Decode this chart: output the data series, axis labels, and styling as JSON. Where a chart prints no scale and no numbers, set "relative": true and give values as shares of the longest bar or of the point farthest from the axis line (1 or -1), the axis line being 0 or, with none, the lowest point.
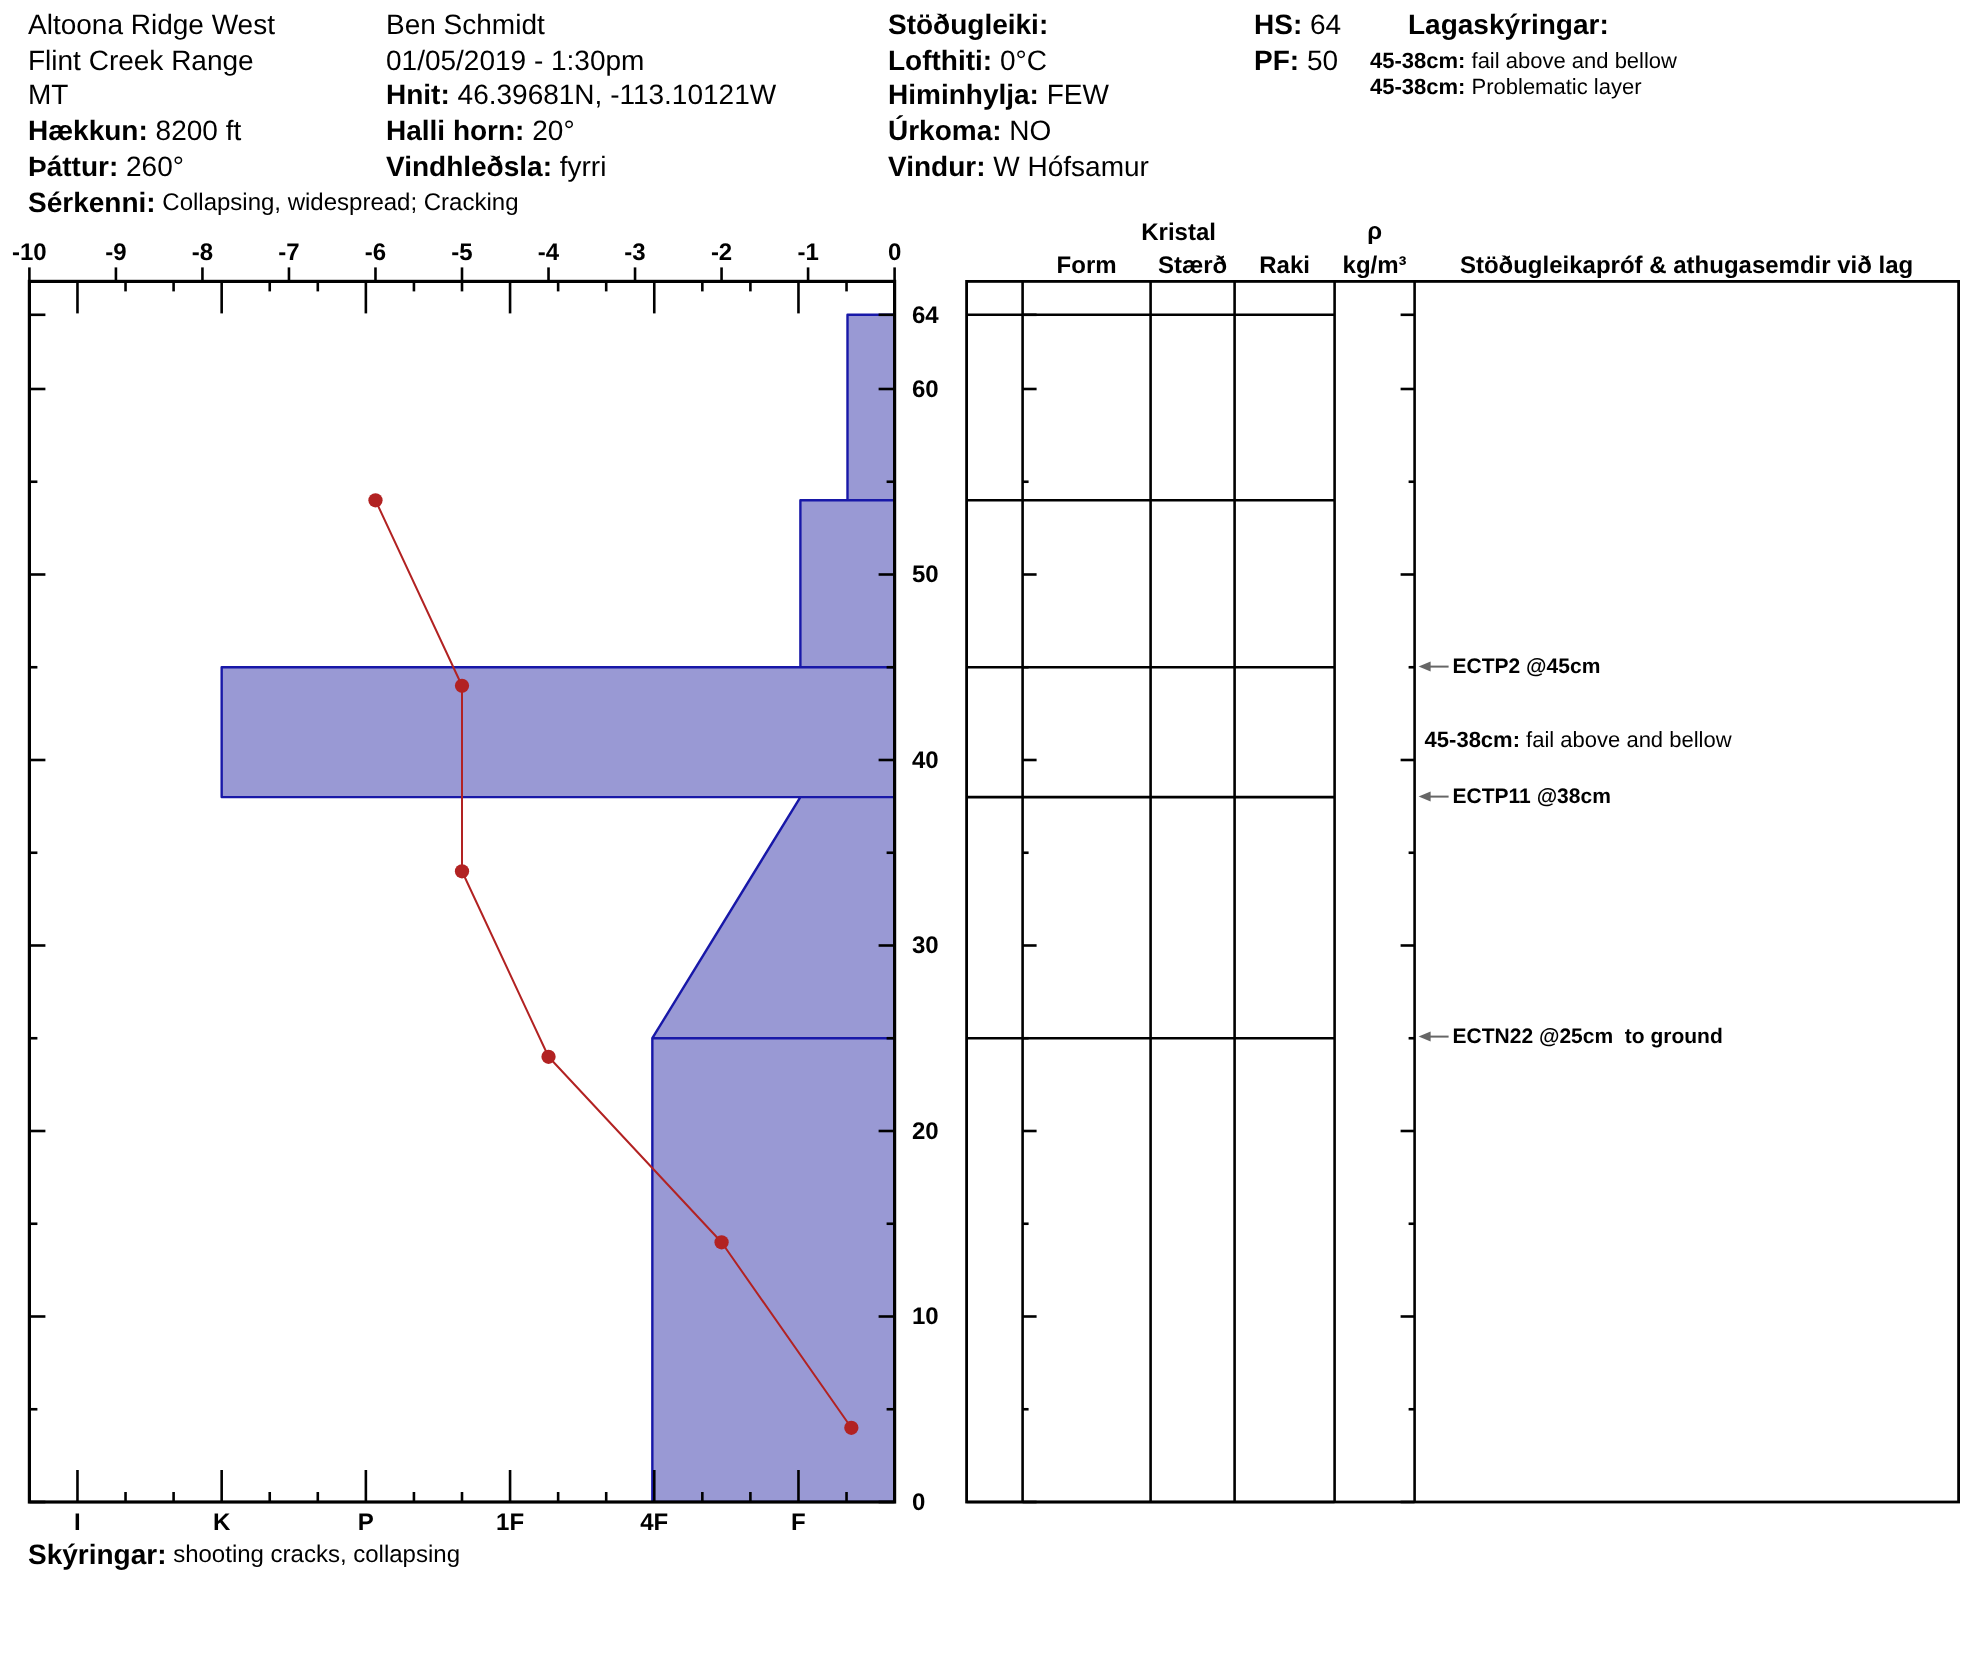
{
  "chart_data": [
    {
      "type": "other",
      "annotations": [
        "Altoona Ridge West",
        "Flint Creek Range",
        "MT",
        "Hækkun: 8200 ft",
        "Þáttur: 260°",
        "Sérkenni: Collapsing, widespread; Cracking",
        "Ben Schmidt",
        "01/05/2019 - 1:30pm",
        "Hnit: 46.39681N, -113.10121W",
        "Halli horn: 20°",
        "Vindhleðsla: fyrri",
        "Stöðugleiki:",
        "Lofthiti: 0°C",
        "Himinhylja: FEW",
        "Úrkoma: NO",
        "Vindur: W Hófsamur",
        "HS: 64",
        "PF: 50",
        "Lagaskýringar:",
        "45-38cm: fail above and bellow",
        "45-38cm: Problematic layer",
        "Skýringar: shooting cracks, collapsing"
      ]
    },
    {
      "type": "area",
      "relative": true,
      "orientation": "horizontal",
      "annotations": [
        "I",
        "K",
        "P",
        "1F",
        "4F",
        "F"
      ],
      "ylim": [
        0,
        65.8
      ],
      "yticks": [
        0,
        {
          "value": 5,
          "label": null
        },
        10,
        {
          "value": 15,
          "label": null
        },
        20,
        {
          "value": 25,
          "label": null
        },
        30,
        {
          "value": 35,
          "label": null
        },
        40,
        {
          "value": 45,
          "label": null
        },
        50,
        {
          "value": 55,
          "label": null
        },
        60,
        64
      ],
      "tick_labels": "y",
      "series": [
        {
          "color": "#9999d4",
          "x": [
            64,
            64,
            54,
            54,
            54,
            45,
            45,
            45,
            38,
            38,
            38,
            25,
            25,
            25,
            0,
            0
          ],
          "values": [
            0,
            -0.07,
            -0.07,
            0,
            -0.14,
            -0.14,
            0,
            -1,
            -1,
            0,
            -0.14,
            -0.36,
            0,
            -0.36,
            -0.36,
            0
          ]
        }
      ]
    },
    {
      "type": "line",
      "color": "#b22222",
      "marker": "circle",
      "x": [
        -6,
        -5,
        -5,
        -4,
        -2,
        -0.5
      ],
      "values": [
        54,
        44,
        34,
        24,
        14,
        4
      ],
      "xlim": [
        -10,
        0
      ],
      "xticks": [
        -10,
        -9,
        -8,
        -7,
        -6,
        -5,
        -4,
        -3,
        -2,
        -1,
        0
      ],
      "ylim": [
        0,
        65.8
      ],
      "tick_labels": "x"
    },
    {
      "type": "other",
      "categories": [
        null,
        "Form",
        "Stærð",
        "Raki",
        "ρ\nkg/m³",
        "Stöðugleikapróf & athugasemdir við lag"
      ],
      "annotations": [
        "Kristal",
        "ECTP2 @45cm",
        "45-38cm: fail above and bellow",
        "ECTP11 @38cm",
        "ECTN22 @25cm  to ground"
      ]
    }
  ]
}
